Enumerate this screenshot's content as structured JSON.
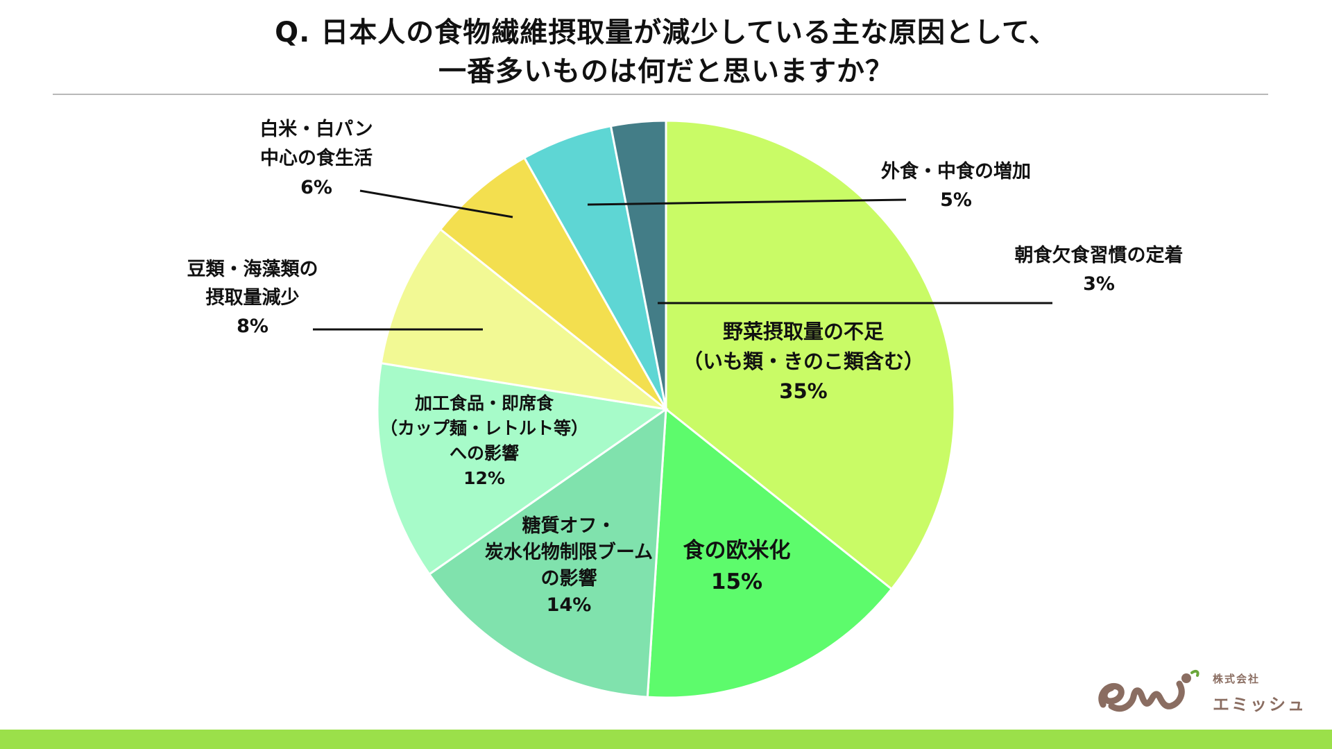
{
  "title": {
    "line1": "Q. 日本人の食物繊維摂取量が減少している主な原因として、",
    "line2": "一番多いものは何だと思いますか？"
  },
  "logo": {
    "company_type": "株式会社",
    "name": "エミッシュ"
  },
  "colors": {
    "bottom_band": "#9be04a",
    "leader_lines": "#111111",
    "logo": "#8a6d61",
    "logo_accent": "#6ba63a"
  },
  "chart_data": {
    "type": "pie",
    "start": "12 o'clock",
    "direction": "clockwise",
    "legend": "none",
    "slices": [
      {
        "label_lines": [
          "野菜摂取量の不足",
          "（いも類・きのこ類含む）"
        ],
        "value": 35,
        "value_label": "35%",
        "color": "#c9fb66"
      },
      {
        "label_lines": [
          "食の欧米化"
        ],
        "value": 15,
        "value_label": "15%",
        "color": "#5dfb6c"
      },
      {
        "label_lines": [
          "糖質オフ・",
          "炭水化物制限ブーム",
          "の影響"
        ],
        "value": 14,
        "value_label": "14%",
        "color": "#80e2ad"
      },
      {
        "label_lines": [
          "加工食品・即席食",
          "（カップ麺・レトルト等）",
          "への影響"
        ],
        "value": 12,
        "value_label": "12%",
        "color": "#a7fbc9"
      },
      {
        "label_lines": [
          "豆類・海藻類の",
          "摂取量減少"
        ],
        "value": 8,
        "value_label": "8%",
        "color": "#f2f994"
      },
      {
        "label_lines": [
          "白米・白パン",
          "中心の食生活"
        ],
        "value": 6,
        "value_label": "6%",
        "color": "#f3df4f"
      },
      {
        "label_lines": [
          "外食・中食の増加"
        ],
        "value": 5,
        "value_label": "5%",
        "color": "#5ed6d4"
      },
      {
        "label_lines": [
          "朝食欠食習慣の定着"
        ],
        "value": 3,
        "value_label": "3%",
        "color": "#437d87"
      }
    ]
  }
}
